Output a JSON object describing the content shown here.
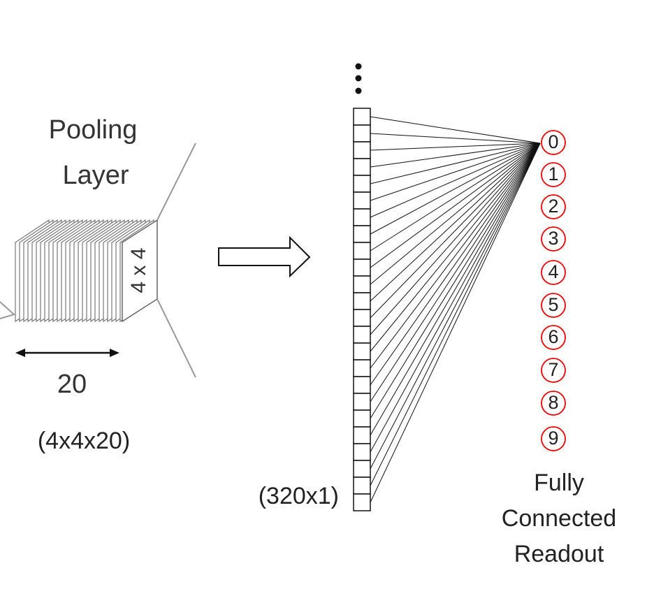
{
  "pooling_layer": {
    "title": [
      "Pooling",
      "Layer"
    ],
    "face_label": "4 x 4",
    "width_label": "20",
    "shape": "(4x4x20)"
  },
  "flatten": {
    "shape": "(320x1)"
  },
  "readout": {
    "nodes": [
      "0",
      "1",
      "2",
      "3",
      "4",
      "5",
      "6",
      "7",
      "8",
      "9"
    ],
    "title": [
      "Fully",
      "Connected",
      "Readout"
    ]
  }
}
